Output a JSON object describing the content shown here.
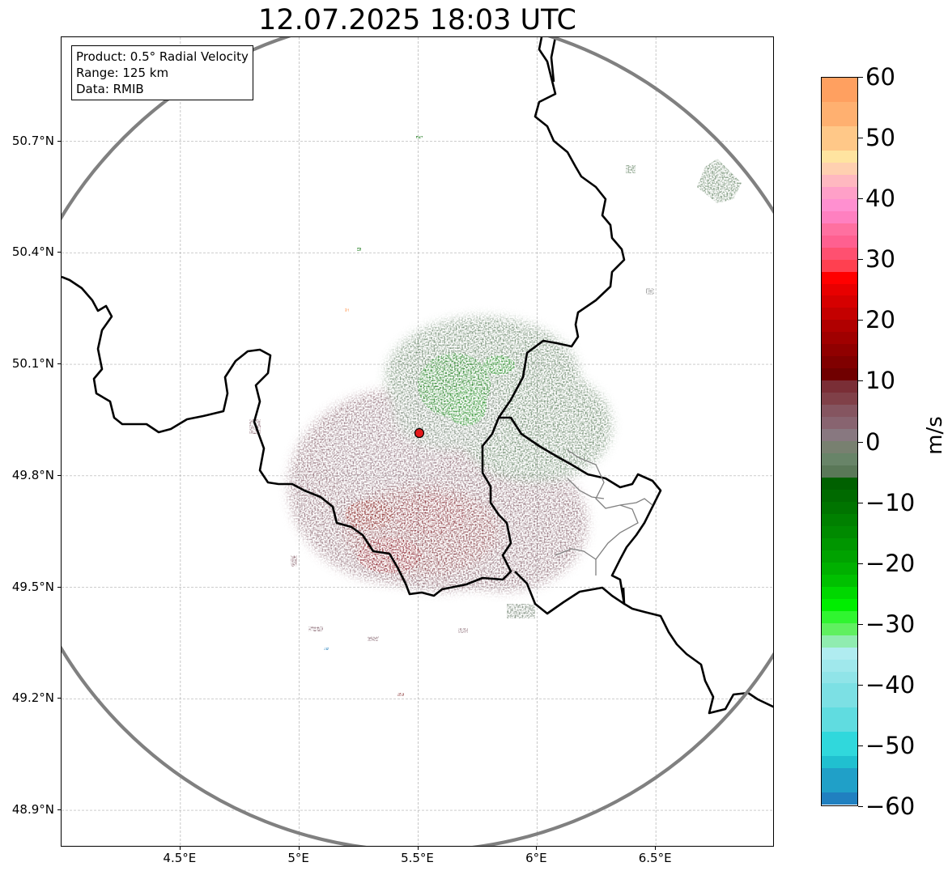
{
  "title": "12.07.2025 18:03 UTC",
  "info": {
    "lines": [
      "Product: 0.5° Radial Velocity",
      "Range: 125 km",
      "Data: RMIB"
    ]
  },
  "map": {
    "lon_range": [
      4.0,
      7.0
    ],
    "lat_range": [
      48.8,
      50.98
    ],
    "radar_site": {
      "lon": 5.505,
      "lat": 49.915,
      "color": "#e41a1c"
    },
    "range_km": 125,
    "lon_ticks": [
      {
        "value": 4.5,
        "label": "4.5°E"
      },
      {
        "value": 5.0,
        "label": "5°E"
      },
      {
        "value": 5.5,
        "label": "5.5°E"
      },
      {
        "value": 6.0,
        "label": "6°E"
      },
      {
        "value": 6.5,
        "label": "6.5°E"
      }
    ],
    "lat_ticks": [
      {
        "value": 50.7,
        "label": "50.7°N"
      },
      {
        "value": 50.4,
        "label": "50.4°N"
      },
      {
        "value": 50.1,
        "label": "50.1°N"
      },
      {
        "value": 49.8,
        "label": "49.8°N"
      },
      {
        "value": 49.5,
        "label": "49.5°N"
      },
      {
        "value": 49.2,
        "label": "49.2°N"
      },
      {
        "value": 48.9,
        "label": "48.9°N"
      }
    ],
    "grid": true,
    "echo_colors": {
      "outbound_strong": "#7a1a1a",
      "outbound_weak": "#8a5a66",
      "near_zero": "#7d7d7d",
      "inbound_weak": "#5c7d5c",
      "inbound_strong": "#0a6e0a"
    }
  },
  "colorbar": {
    "unit": "m/s",
    "min": -60,
    "max": 60,
    "ticks": [
      {
        "value": 60,
        "label": "60"
      },
      {
        "value": 50,
        "label": "50"
      },
      {
        "value": 40,
        "label": "40"
      },
      {
        "value": 30,
        "label": "30"
      },
      {
        "value": 20,
        "label": "20"
      },
      {
        "value": 10,
        "label": "10"
      },
      {
        "value": 0,
        "label": "0"
      },
      {
        "value": -10,
        "label": "−10"
      },
      {
        "value": -20,
        "label": "−20"
      },
      {
        "value": -30,
        "label": "−30"
      },
      {
        "value": -40,
        "label": "−40"
      },
      {
        "value": -50,
        "label": "−50"
      },
      {
        "value": -60,
        "label": "−60"
      }
    ],
    "bands": [
      {
        "from": 56,
        "to": 60,
        "color": "#ffa060"
      },
      {
        "from": 52,
        "to": 56,
        "color": "#ffb070"
      },
      {
        "from": 48,
        "to": 52,
        "color": "#ffc888"
      },
      {
        "from": 46,
        "to": 48,
        "color": "#ffe4a0"
      },
      {
        "from": 44,
        "to": 46,
        "color": "#ffd0b0"
      },
      {
        "from": 42,
        "to": 44,
        "color": "#ffb8c0"
      },
      {
        "from": 40,
        "to": 42,
        "color": "#ffa0c8"
      },
      {
        "from": 38,
        "to": 40,
        "color": "#ff90d0"
      },
      {
        "from": 36,
        "to": 38,
        "color": "#ff80c0"
      },
      {
        "from": 34,
        "to": 36,
        "color": "#ff70a0"
      },
      {
        "from": 32,
        "to": 34,
        "color": "#ff6090"
      },
      {
        "from": 30,
        "to": 32,
        "color": "#ff5070"
      },
      {
        "from": 28,
        "to": 30,
        "color": "#ff4050"
      },
      {
        "from": 26,
        "to": 28,
        "color": "#ff0000"
      },
      {
        "from": 24,
        "to": 26,
        "color": "#e80000"
      },
      {
        "from": 22,
        "to": 24,
        "color": "#d60000"
      },
      {
        "from": 20,
        "to": 22,
        "color": "#c40000"
      },
      {
        "from": 18,
        "to": 20,
        "color": "#b00000"
      },
      {
        "from": 16,
        "to": 18,
        "color": "#a00000"
      },
      {
        "from": 14,
        "to": 16,
        "color": "#900000"
      },
      {
        "from": 12,
        "to": 14,
        "color": "#800000"
      },
      {
        "from": 10,
        "to": 12,
        "color": "#700000"
      },
      {
        "from": 8,
        "to": 10,
        "color": "#7a2e36"
      },
      {
        "from": 6,
        "to": 8,
        "color": "#804048"
      },
      {
        "from": 4,
        "to": 6,
        "color": "#855560"
      },
      {
        "from": 2,
        "to": 4,
        "color": "#886470"
      },
      {
        "from": 0,
        "to": 2,
        "color": "#887880"
      },
      {
        "from": -2,
        "to": 0,
        "color": "#788070"
      },
      {
        "from": -4,
        "to": -2,
        "color": "#688468"
      },
      {
        "from": -6,
        "to": -4,
        "color": "#5a7858"
      },
      {
        "from": -8,
        "to": -6,
        "color": "#006000"
      },
      {
        "from": -10,
        "to": -8,
        "color": "#006a00"
      },
      {
        "from": -12,
        "to": -10,
        "color": "#007400"
      },
      {
        "from": -14,
        "to": -12,
        "color": "#008000"
      },
      {
        "from": -16,
        "to": -14,
        "color": "#008a00"
      },
      {
        "from": -18,
        "to": -16,
        "color": "#009600"
      },
      {
        "from": -20,
        "to": -18,
        "color": "#00a200"
      },
      {
        "from": -22,
        "to": -20,
        "color": "#00b000"
      },
      {
        "from": -24,
        "to": -22,
        "color": "#00c000"
      },
      {
        "from": -26,
        "to": -24,
        "color": "#00d800"
      },
      {
        "from": -28,
        "to": -26,
        "color": "#00ee00"
      },
      {
        "from": -30,
        "to": -28,
        "color": "#30f530"
      },
      {
        "from": -32,
        "to": -30,
        "color": "#60f060"
      },
      {
        "from": -34,
        "to": -32,
        "color": "#90ecb0"
      },
      {
        "from": -36,
        "to": -34,
        "color": "#b0ecf0"
      },
      {
        "from": -38,
        "to": -36,
        "color": "#a0e8ec"
      },
      {
        "from": -40,
        "to": -38,
        "color": "#90e4e8"
      },
      {
        "from": -44,
        "to": -40,
        "color": "#7ce0e4"
      },
      {
        "from": -48,
        "to": -44,
        "color": "#60dce0"
      },
      {
        "from": -52,
        "to": -48,
        "color": "#30d8dc"
      },
      {
        "from": -54,
        "to": -52,
        "color": "#20c0d0"
      },
      {
        "from": -58,
        "to": -54,
        "color": "#20a0c8"
      },
      {
        "from": -60,
        "to": -58,
        "color": "#2080c0"
      }
    ]
  }
}
